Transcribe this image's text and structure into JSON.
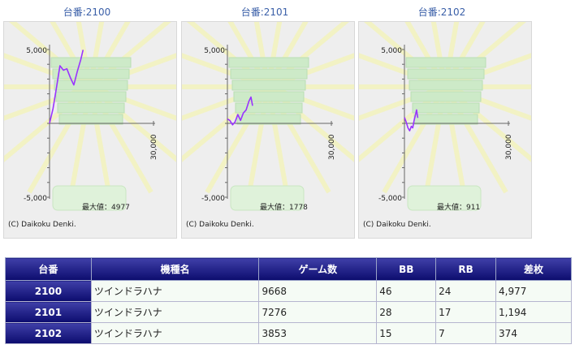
{
  "panels": [
    {
      "title": "台番:2100",
      "max_text": "最大値：4977",
      "copyright": "(C) Daikoku Denki."
    },
    {
      "title": "台番:2101",
      "max_text": "最大値：1778",
      "copyright": "(C) Daikoku Denki."
    },
    {
      "title": "台番:2102",
      "max_text": "最大値：911",
      "copyright": "(C) Daikoku Denki."
    }
  ],
  "axis": {
    "ymax_label": "5,000",
    "ymin_label": "-5,000",
    "xmax_label": "30,000"
  },
  "chart_data": [
    {
      "type": "line",
      "title": "台番:2100",
      "xlim": [
        0,
        30000
      ],
      "ylim": [
        -5000,
        5000
      ],
      "x": [
        0,
        1000,
        2000,
        3000,
        4000,
        5000,
        6000,
        7000,
        8000,
        9000,
        9668
      ],
      "y": [
        0,
        1000,
        2400,
        3900,
        3600,
        3700,
        3100,
        2600,
        3500,
        4300,
        4977
      ],
      "color": "#9933ff"
    },
    {
      "type": "line",
      "title": "台番:2101",
      "xlim": [
        0,
        30000
      ],
      "ylim": [
        -5000,
        5000
      ],
      "x": [
        0,
        700,
        1500,
        2200,
        3000,
        3800,
        4600,
        5400,
        6200,
        6800,
        7276
      ],
      "y": [
        300,
        200,
        -100,
        100,
        600,
        200,
        700,
        900,
        1500,
        1778,
        1194
      ],
      "color": "#9933ff"
    },
    {
      "type": "line",
      "title": "台番:2102",
      "xlim": [
        0,
        30000
      ],
      "ylim": [
        -5000,
        5000
      ],
      "x": [
        0,
        500,
        1000,
        1500,
        2000,
        2400,
        2800,
        3200,
        3500,
        3853
      ],
      "y": [
        400,
        100,
        -300,
        -500,
        -200,
        -300,
        200,
        600,
        911,
        374
      ],
      "color": "#9933ff"
    }
  ],
  "table": {
    "headers": [
      "台番",
      "機種名",
      "ゲーム数",
      "BB",
      "RB",
      "差枚"
    ],
    "rows": [
      [
        "2100",
        "ツインドラハナ",
        "9668",
        "46",
        "24",
        "4,977"
      ],
      [
        "2101",
        "ツインドラハナ",
        "7276",
        "28",
        "17",
        "1,194"
      ],
      [
        "2102",
        "ツインドラハナ",
        "3853",
        "15",
        "7",
        "374"
      ]
    ]
  }
}
